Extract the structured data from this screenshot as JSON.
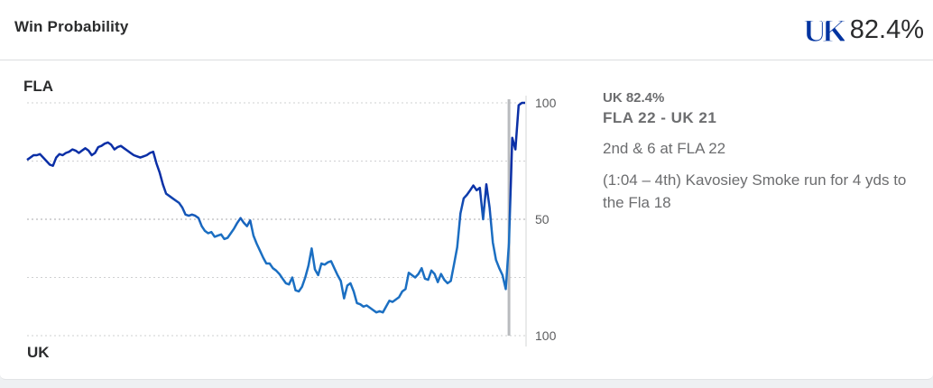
{
  "header": {
    "title": "Win Probability",
    "logo_label": "UK",
    "probability": "82.4%"
  },
  "teams": {
    "top": "FLA",
    "bottom": "UK"
  },
  "info": {
    "prob_line": "UK 82.4%",
    "score_line": "FLA 22  - UK 21",
    "down_distance": "2nd & 6 at FLA 22",
    "play": "(1:04 – 4th) Kavosiey Smoke run for 4 yds to the Fla 18"
  },
  "colors": {
    "uk_blue": "#0033a0",
    "line_light": "#1b6fc2",
    "line_dark": "#0b2fa6",
    "grid": "#cfd0d2",
    "marker": "#b9bbbe"
  },
  "chart_data": {
    "type": "line",
    "title": "",
    "xlabel": "",
    "ylabel": "",
    "y_axis_tick_labels": [
      "100",
      "50",
      "100"
    ],
    "ylim": [
      -100,
      100
    ],
    "grid": true,
    "current_play_marker": true,
    "series": [
      {
        "values": [
          51,
          53,
          55,
          55,
          56,
          53,
          50,
          47,
          46,
          53,
          56,
          55,
          57,
          58,
          60,
          59,
          57,
          59,
          61,
          59,
          55,
          57,
          62,
          63,
          65,
          66,
          64,
          60,
          62,
          63,
          61,
          59,
          57,
          55,
          54,
          53,
          54,
          55,
          57,
          58,
          48,
          40,
          30,
          22,
          20,
          18,
          16,
          14,
          10,
          4,
          3,
          4,
          3,
          1,
          -6,
          -10,
          -12,
          -11,
          -15,
          -14,
          -13,
          -17,
          -16,
          -12,
          -8,
          -3,
          1,
          -3,
          -6,
          -1,
          -14,
          -21,
          -27,
          -33,
          -38,
          -38,
          -42,
          -44,
          -47,
          -51,
          -55,
          -56,
          -50,
          -61,
          -62,
          -58,
          -50,
          -40,
          -25,
          -43,
          -48,
          -38,
          -39,
          -37,
          -36,
          -42,
          -48,
          -53,
          -68,
          -57,
          -55,
          -62,
          -72,
          -73,
          -75,
          -74,
          -76,
          -78,
          -80,
          -79,
          -80,
          -75,
          -70,
          -71,
          -69,
          -67,
          -62,
          -60,
          -46,
          -48,
          -50,
          -47,
          -42,
          -51,
          -52,
          -44,
          -47,
          -54,
          -47,
          -52,
          -55,
          -53,
          -39,
          -24,
          5,
          18,
          21,
          25,
          29,
          25,
          27,
          0,
          30,
          10,
          -20,
          -35,
          -42,
          -48,
          -60,
          -20,
          70,
          60,
          98,
          100,
          100
        ]
      }
    ]
  }
}
